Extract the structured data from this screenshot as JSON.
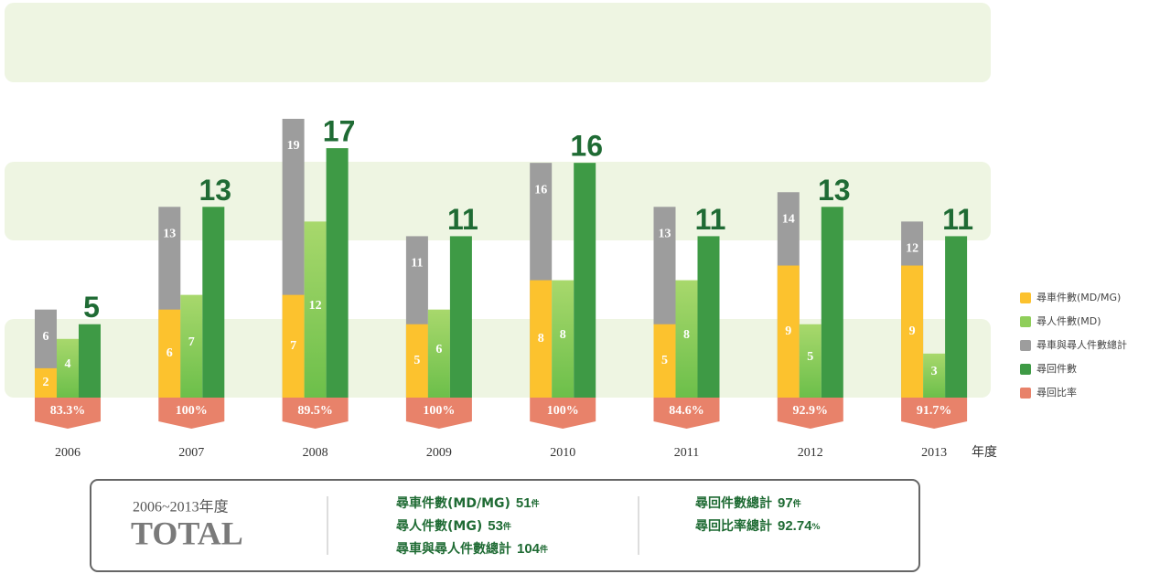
{
  "chart_data": {
    "type": "grouped-bar",
    "categories": [
      "2006",
      "2007",
      "2008",
      "2009",
      "2010",
      "2011",
      "2012",
      "2013"
    ],
    "x_label": "年度",
    "series": [
      {
        "name": "尋車件數(MD/MG)",
        "color": "#fcc22e",
        "values": [
          2,
          6,
          7,
          5,
          8,
          5,
          9,
          9
        ]
      },
      {
        "name": "尋人件數(MD)",
        "color": "#8fce5a",
        "values": [
          4,
          7,
          12,
          6,
          8,
          8,
          5,
          3
        ]
      },
      {
        "name": "尋車與尋人件數總計",
        "color": "#9d9d9d",
        "values": [
          6,
          13,
          19,
          11,
          16,
          13,
          14,
          12
        ]
      },
      {
        "name": "尋回件數",
        "color": "#3e9a45",
        "values": [
          5,
          13,
          17,
          11,
          16,
          11,
          13,
          11
        ]
      },
      {
        "name": "尋回比率",
        "color": "#e8826a",
        "values": [
          83.3,
          100,
          89.5,
          100,
          100,
          84.6,
          92.9,
          91.7
        ],
        "value_labels": [
          "83.3%",
          "100%",
          "89.5%",
          "100%",
          "100%",
          "84.6%",
          "92.9%",
          "91.7%"
        ]
      }
    ]
  },
  "totals": {
    "period": "2006~2013年度",
    "title": "TOTAL",
    "items": [
      {
        "label": "尋車件數(MD/MG)",
        "value": 51,
        "unit": "件"
      },
      {
        "label": "尋人件數(MG)",
        "value": 53,
        "unit": "件"
      },
      {
        "label": "尋車與尋人件數總計",
        "value": 104,
        "unit": "件"
      },
      {
        "label": "尋回件數總計",
        "value": 97,
        "unit": "件"
      },
      {
        "label": "尋回比率總計",
        "value": 92.74,
        "unit": "%"
      }
    ]
  }
}
